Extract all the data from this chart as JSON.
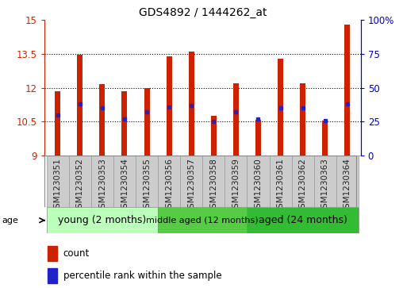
{
  "title": "GDS4892 / 1444262_at",
  "samples": [
    "GSM1230351",
    "GSM1230352",
    "GSM1230353",
    "GSM1230354",
    "GSM1230355",
    "GSM1230356",
    "GSM1230357",
    "GSM1230358",
    "GSM1230359",
    "GSM1230360",
    "GSM1230361",
    "GSM1230362",
    "GSM1230363",
    "GSM1230364"
  ],
  "count_values": [
    11.85,
    13.48,
    12.15,
    11.85,
    12.0,
    13.38,
    13.6,
    10.75,
    12.2,
    10.6,
    13.3,
    12.2,
    10.55,
    14.8
  ],
  "percentile_values": [
    30,
    38,
    35,
    27,
    32,
    36,
    37,
    25,
    32,
    27,
    35,
    35,
    26,
    38
  ],
  "y_min": 9,
  "y_max": 15,
  "y_ticks": [
    9,
    10.5,
    12,
    13.5,
    15
  ],
  "right_y_ticks": [
    0,
    25,
    50,
    75,
    100
  ],
  "bar_color": "#cc2200",
  "percentile_color": "#2222cc",
  "groups": [
    {
      "label": "young (2 months)",
      "start": 0,
      "end": 5
    },
    {
      "label": "middle aged (12 months)",
      "start": 5,
      "end": 9
    },
    {
      "label": "aged (24 months)",
      "start": 9,
      "end": 14
    }
  ],
  "group_colors": [
    "#bbffbb",
    "#55cc44",
    "#33bb33"
  ],
  "group_font_sizes": [
    9,
    8,
    9
  ],
  "age_label": "age",
  "legend_count": "count",
  "legend_percentile": "percentile rank within the sample",
  "bar_width": 0.25,
  "left_axis_color": "#cc2200",
  "right_axis_color": "#0000cc",
  "sample_box_color": "#cccccc",
  "title_fontsize": 10,
  "ylabel_fontsize": 9,
  "tick_fontsize": 8.5
}
